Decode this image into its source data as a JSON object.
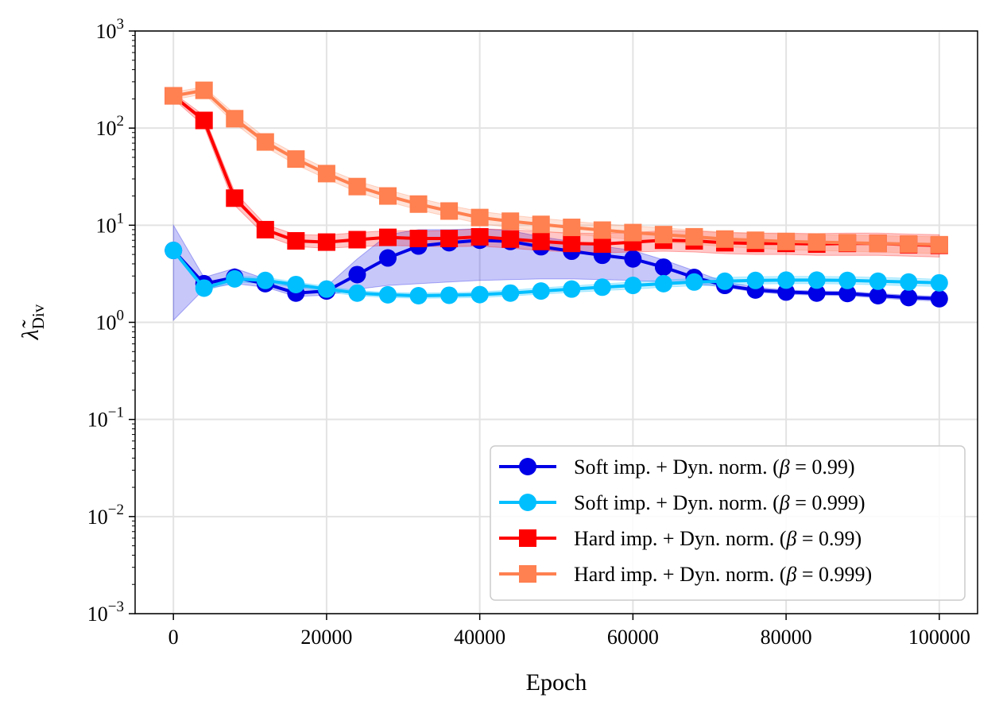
{
  "chart_data": {
    "type": "line",
    "title": "",
    "xlabel": "Epoch",
    "ylabel": {
      "base": "λ̃",
      "sub": "Div"
    },
    "yscale": "log",
    "xlim": [
      -5000,
      105000
    ],
    "ylim": [
      0.001,
      1000
    ],
    "grid": true,
    "legend_position": "lower-right",
    "x_ticks": [
      0,
      20000,
      40000,
      60000,
      80000,
      100000
    ],
    "x_tick_labels": [
      "0",
      "20000",
      "40000",
      "60000",
      "80000",
      "100000"
    ],
    "y_ticks": [
      {
        "value": 0.001,
        "base": "10",
        "exp": "−3"
      },
      {
        "value": 0.01,
        "base": "10",
        "exp": "−2"
      },
      {
        "value": 0.1,
        "base": "10",
        "exp": "−1"
      },
      {
        "value": 1,
        "base": "10",
        "exp": "0"
      },
      {
        "value": 10,
        "base": "10",
        "exp": "1"
      },
      {
        "value": 100,
        "base": "10",
        "exp": "2"
      },
      {
        "value": 1000,
        "base": "10",
        "exp": "3"
      }
    ],
    "x": [
      0,
      4000,
      8000,
      12000,
      16000,
      20000,
      24000,
      28000,
      32000,
      36000,
      40000,
      44000,
      48000,
      52000,
      56000,
      60000,
      64000,
      68000,
      72000,
      76000,
      80000,
      84000,
      88000,
      92000,
      96000,
      100000
    ],
    "series": [
      {
        "name": "Soft imp. + Dyn. norm. (β = 0.99)",
        "legend": {
          "prefix": "Soft imp. + Dyn. norm. (",
          "beta": "β",
          "eq": " = 0.99",
          "suffix": ")"
        },
        "color": "#0000e6",
        "marker": "circle",
        "values": [
          5.5,
          2.5,
          2.9,
          2.5,
          2.0,
          2.1,
          3.1,
          4.6,
          6.1,
          6.6,
          7.0,
          6.8,
          6.0,
          5.4,
          4.9,
          4.5,
          3.7,
          2.9,
          2.4,
          2.15,
          2.05,
          2.0,
          1.98,
          1.88,
          1.8,
          1.75
        ],
        "lower": [
          1.05,
          2.2,
          2.5,
          2.3,
          1.85,
          1.9,
          2.2,
          2.4,
          2.5,
          2.6,
          2.7,
          2.75,
          2.8,
          2.8,
          2.75,
          2.7,
          2.6,
          2.5,
          2.3,
          2.05,
          1.95,
          1.9,
          1.88,
          1.78,
          1.7,
          1.65
        ],
        "upper": [
          10.0,
          2.9,
          3.6,
          2.8,
          2.25,
          2.35,
          4.5,
          8.0,
          9.0,
          9.0,
          9.2,
          8.8,
          7.6,
          6.8,
          6.1,
          5.5,
          4.4,
          3.4,
          2.6,
          2.3,
          2.15,
          2.1,
          2.08,
          1.98,
          1.9,
          1.85
        ]
      },
      {
        "name": "Soft imp. + Dyn. norm. (β = 0.999)",
        "legend": {
          "prefix": "Soft imp. + Dyn. norm. (",
          "beta": "β",
          "eq": " = 0.999",
          "suffix": ")"
        },
        "color": "#00bfff",
        "marker": "circle",
        "values": [
          5.5,
          2.25,
          2.8,
          2.7,
          2.45,
          2.2,
          2.0,
          1.92,
          1.88,
          1.9,
          1.93,
          2.0,
          2.1,
          2.2,
          2.3,
          2.4,
          2.5,
          2.6,
          2.65,
          2.7,
          2.72,
          2.72,
          2.7,
          2.65,
          2.6,
          2.55
        ],
        "lower": [
          5.3,
          2.1,
          2.6,
          2.5,
          2.3,
          2.05,
          1.88,
          1.8,
          1.77,
          1.78,
          1.8,
          1.87,
          1.95,
          2.04,
          2.12,
          2.2,
          2.3,
          2.38,
          2.42,
          2.48,
          2.5,
          2.5,
          2.48,
          2.43,
          2.38,
          2.34
        ],
        "upper": [
          5.7,
          2.4,
          3.0,
          2.9,
          2.6,
          2.35,
          2.12,
          2.04,
          2.0,
          2.02,
          2.06,
          2.14,
          2.26,
          2.37,
          2.48,
          2.6,
          2.72,
          2.83,
          2.9,
          2.95,
          2.97,
          2.97,
          2.95,
          2.9,
          2.84,
          2.78
        ]
      },
      {
        "name": "Hard imp. + Dyn. norm. (β = 0.99)",
        "legend": {
          "prefix": "Hard imp. + Dyn. norm. (",
          "beta": "β",
          "eq": " = 0.99",
          "suffix": ")"
        },
        "color": "#ff0000",
        "marker": "square",
        "values": [
          215,
          120,
          19,
          9.0,
          6.9,
          6.7,
          7.1,
          7.5,
          7.3,
          7.3,
          7.6,
          7.2,
          6.8,
          6.5,
          6.4,
          6.7,
          7.0,
          6.9,
          6.6,
          6.5,
          6.5,
          6.4,
          6.5,
          6.5,
          6.3,
          6.2
        ],
        "lower": [
          200,
          105,
          16,
          7.8,
          6.0,
          5.8,
          6.0,
          6.2,
          6.1,
          6.0,
          6.1,
          5.8,
          5.5,
          5.3,
          5.2,
          5.3,
          5.4,
          5.3,
          5.1,
          5.0,
          5.0,
          4.9,
          4.9,
          4.9,
          4.8,
          4.7
        ],
        "upper": [
          230,
          135,
          22,
          10.2,
          8.0,
          7.9,
          8.4,
          8.8,
          8.7,
          8.8,
          9.2,
          9.0,
          8.6,
          8.3,
          8.2,
          8.4,
          8.8,
          8.7,
          8.4,
          8.3,
          8.3,
          8.2,
          8.3,
          8.3,
          8.1,
          8.0
        ]
      },
      {
        "name": "Hard imp. + Dyn. norm. (β = 0.999)",
        "legend": {
          "prefix": "Hard imp. + Dyn. norm. (",
          "beta": "β",
          "eq": " = 0.999",
          "suffix": ")"
        },
        "color": "#ff8050",
        "marker": "square",
        "values": [
          215,
          245,
          125,
          72,
          48,
          34,
          25,
          20,
          16.5,
          14,
          12,
          11,
          10.2,
          9.5,
          8.9,
          8.4,
          8.0,
          7.6,
          7.2,
          7.0,
          6.8,
          6.7,
          6.6,
          6.5,
          6.4,
          6.3
        ],
        "lower": [
          195,
          225,
          112,
          64,
          42,
          30,
          22,
          17.5,
          14.4,
          12.2,
          10.4,
          9.5,
          8.7,
          8.1,
          7.6,
          7.1,
          6.7,
          6.4,
          6.0,
          5.8,
          5.6,
          5.5,
          5.4,
          5.3,
          5.2,
          5.1
        ],
        "upper": [
          235,
          265,
          140,
          80,
          54,
          38,
          28.5,
          23,
          19,
          16,
          13.9,
          12.7,
          11.8,
          11.0,
          10.3,
          9.8,
          9.4,
          8.9,
          8.5,
          8.3,
          8.1,
          8.0,
          7.9,
          7.8,
          7.7,
          7.6
        ]
      }
    ]
  }
}
